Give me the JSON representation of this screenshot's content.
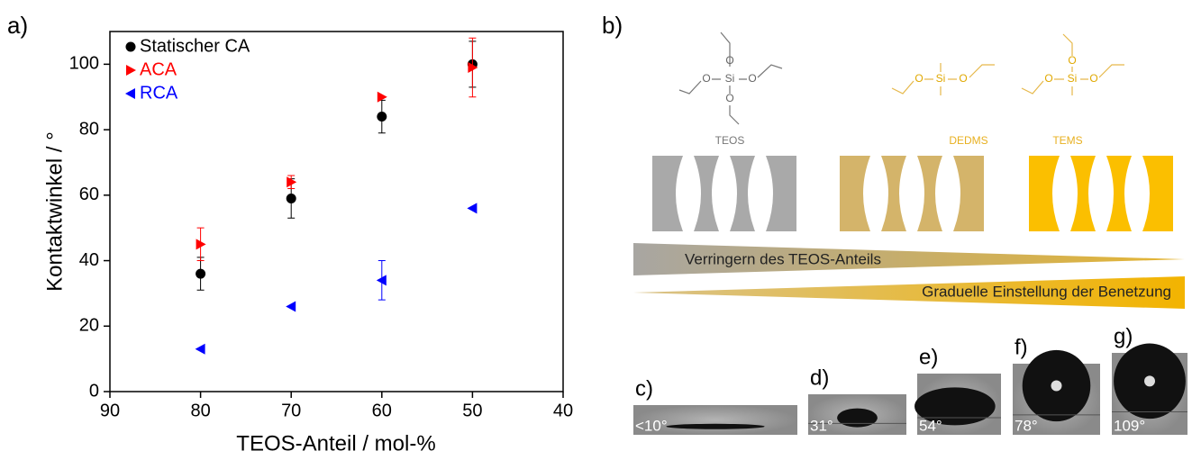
{
  "chart_data": {
    "type": "scatter",
    "label": "a)",
    "xlabel": "TEOS-Anteil / mol-%",
    "ylabel": "Kontaktwinkel / °",
    "xlim": [
      90,
      40
    ],
    "ylim": [
      0,
      110
    ],
    "xticks": [
      90,
      80,
      70,
      60,
      50,
      40
    ],
    "yticks": [
      0,
      20,
      40,
      60,
      80,
      100
    ],
    "x": [
      80,
      70,
      60,
      50
    ],
    "legend": "upper left",
    "series": [
      {
        "name": "Statischer CA",
        "color": "#000000",
        "marker": "circle",
        "values": [
          36,
          59,
          84,
          100
        ],
        "errors": [
          5,
          6,
          5,
          7
        ]
      },
      {
        "name": "ACA",
        "color": "#ff0000",
        "marker": "triangle-right",
        "values": [
          45,
          64,
          90,
          99
        ],
        "errors": [
          5,
          2,
          0,
          9
        ]
      },
      {
        "name": "RCA",
        "color": "#0000ff",
        "marker": "triangle-left",
        "values": [
          13,
          26,
          34,
          56
        ],
        "errors": [
          0,
          0,
          6,
          0
        ]
      }
    ]
  },
  "diagram": {
    "label": "b)",
    "molecules": [
      {
        "name": "TEOS",
        "atoms": [
          "O",
          "O",
          "Si",
          "O",
          "O"
        ]
      },
      {
        "name": "DEDMS",
        "atoms": [
          "O",
          "Si",
          "O"
        ]
      },
      {
        "name": "TEMS",
        "atoms": [
          "O",
          "O",
          "Si",
          "O"
        ]
      }
    ],
    "arrows": [
      "Verringern des TEOS-Anteils",
      "Graduelle Einstellung der Benetzung"
    ],
    "images": [
      {
        "label": "c)",
        "angle": "<10°"
      },
      {
        "label": "d)",
        "angle": "31°"
      },
      {
        "label": "e)",
        "angle": "54°"
      },
      {
        "label": "f)",
        "angle": "78°"
      },
      {
        "label": "g)",
        "angle": "109°"
      }
    ]
  }
}
